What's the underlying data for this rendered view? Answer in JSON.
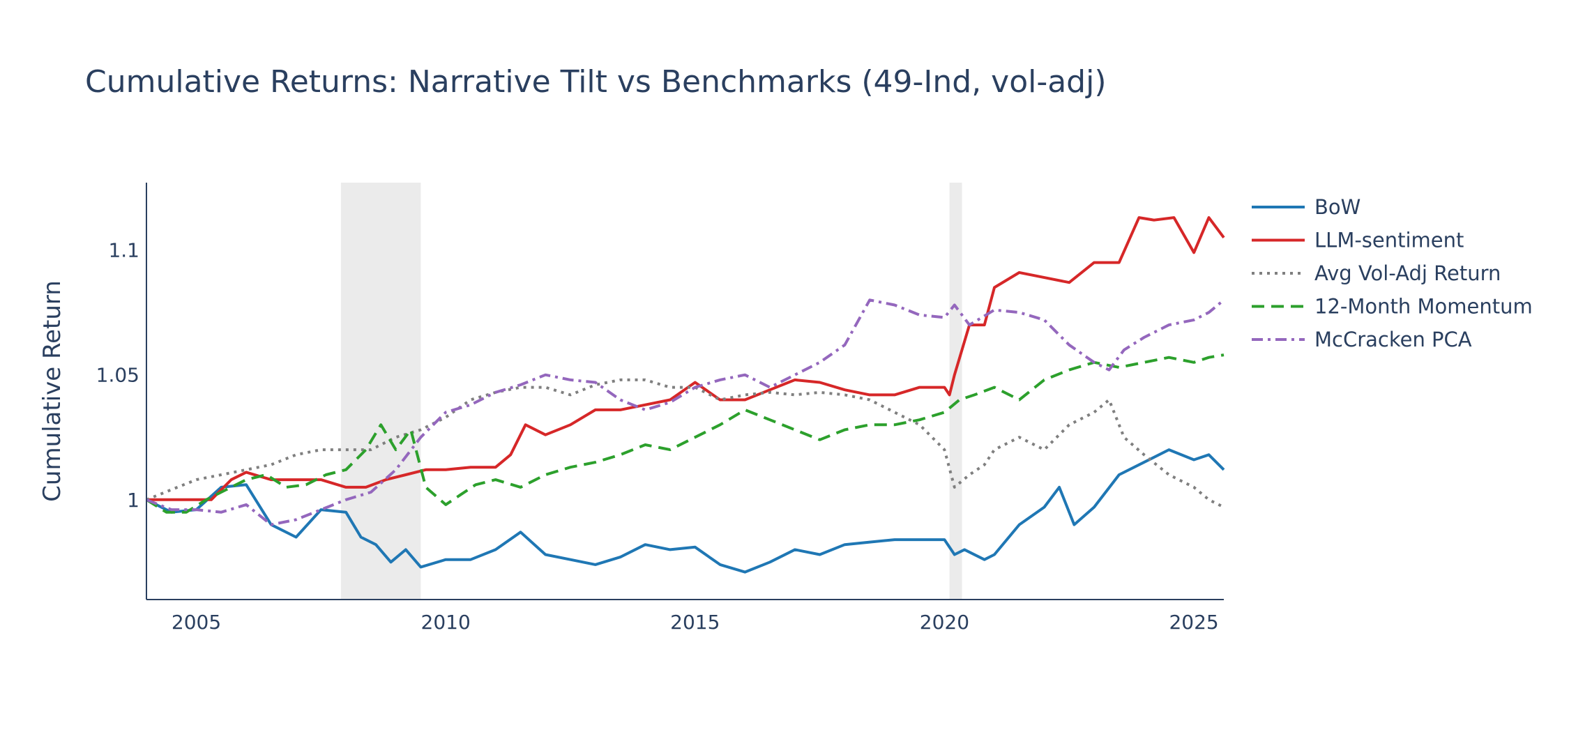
{
  "chart_data": {
    "type": "line",
    "title": "Cumulative Returns: Narrative Tilt vs Benchmarks (49-Ind, vol-adj)",
    "xlabel": "",
    "ylabel": "Cumulative Return",
    "xlim": [
      2004.0,
      2025.6
    ],
    "ylim": [
      0.96,
      1.127
    ],
    "x_ticks": [
      2005,
      2010,
      2015,
      2020,
      2025
    ],
    "x_tick_labels": [
      "2005",
      "2010",
      "2015",
      "2020",
      "2025"
    ],
    "y_ticks": [
      1.0,
      1.05,
      1.1
    ],
    "y_tick_labels": [
      "1",
      "1.05",
      "1.1"
    ],
    "grid": false,
    "legend_position": "right",
    "recession_shading": [
      {
        "start": 2007.9,
        "end": 2009.5,
        "color": "#ebebeb"
      },
      {
        "start": 2020.1,
        "end": 2020.35,
        "color": "#ebebeb"
      }
    ],
    "series": [
      {
        "name": "BoW",
        "color": "#1f77b4",
        "dash": "solid",
        "x": [
          2004.0,
          2004.5,
          2005.0,
          2005.5,
          2006.0,
          2006.5,
          2007.0,
          2007.5,
          2008.0,
          2008.3,
          2008.6,
          2008.9,
          2009.2,
          2009.5,
          2010.0,
          2010.5,
          2011.0,
          2011.5,
          2012.0,
          2012.5,
          2013.0,
          2013.5,
          2014.0,
          2014.5,
          2015.0,
          2015.5,
          2016.0,
          2016.5,
          2017.0,
          2017.5,
          2018.0,
          2018.5,
          2019.0,
          2019.5,
          2020.0,
          2020.2,
          2020.4,
          2020.8,
          2021.0,
          2021.5,
          2022.0,
          2022.3,
          2022.6,
          2023.0,
          2023.5,
          2024.0,
          2024.5,
          2025.0,
          2025.3,
          2025.6
        ],
        "y": [
          1.0,
          0.995,
          0.996,
          1.005,
          1.006,
          0.99,
          0.985,
          0.996,
          0.995,
          0.985,
          0.982,
          0.975,
          0.98,
          0.973,
          0.976,
          0.976,
          0.98,
          0.987,
          0.978,
          0.976,
          0.974,
          0.977,
          0.982,
          0.98,
          0.981,
          0.974,
          0.971,
          0.975,
          0.98,
          0.978,
          0.982,
          0.983,
          0.984,
          0.984,
          0.984,
          0.978,
          0.98,
          0.976,
          0.978,
          0.99,
          0.997,
          1.005,
          0.99,
          0.997,
          1.01,
          1.015,
          1.02,
          1.016,
          1.018,
          1.012
        ]
      },
      {
        "name": "LLM-sentiment",
        "color": "#d62728",
        "dash": "solid",
        "x": [
          2004.0,
          2004.5,
          2005.0,
          2005.3,
          2005.7,
          2006.0,
          2006.5,
          2007.0,
          2007.5,
          2008.0,
          2008.4,
          2008.8,
          2009.2,
          2009.6,
          2010.0,
          2010.5,
          2011.0,
          2011.3,
          2011.6,
          2012.0,
          2012.5,
          2013.0,
          2013.5,
          2014.0,
          2014.5,
          2015.0,
          2015.5,
          2016.0,
          2016.5,
          2017.0,
          2017.5,
          2018.0,
          2018.5,
          2019.0,
          2019.5,
          2020.0,
          2020.1,
          2020.2,
          2020.5,
          2020.8,
          2021.0,
          2021.5,
          2022.0,
          2022.5,
          2023.0,
          2023.5,
          2023.9,
          2024.2,
          2024.6,
          2025.0,
          2025.3,
          2025.6
        ],
        "y": [
          1.0,
          1.0,
          1.0,
          1.0,
          1.008,
          1.011,
          1.008,
          1.008,
          1.008,
          1.005,
          1.005,
          1.008,
          1.01,
          1.012,
          1.012,
          1.013,
          1.013,
          1.018,
          1.03,
          1.026,
          1.03,
          1.036,
          1.036,
          1.038,
          1.04,
          1.047,
          1.04,
          1.04,
          1.044,
          1.048,
          1.047,
          1.044,
          1.042,
          1.042,
          1.045,
          1.045,
          1.042,
          1.05,
          1.07,
          1.07,
          1.085,
          1.091,
          1.089,
          1.087,
          1.095,
          1.095,
          1.113,
          1.112,
          1.113,
          1.099,
          1.113,
          1.105
        ]
      },
      {
        "name": "Avg Vol-Adj Return",
        "color": "#7f7f7f",
        "dash": "dot",
        "x": [
          2004.0,
          2004.5,
          2005.0,
          2005.5,
          2006.0,
          2006.5,
          2007.0,
          2007.5,
          2008.0,
          2008.5,
          2009.0,
          2009.5,
          2010.0,
          2010.5,
          2011.0,
          2011.5,
          2012.0,
          2012.5,
          2013.0,
          2013.5,
          2014.0,
          2014.5,
          2015.0,
          2015.5,
          2016.0,
          2016.5,
          2017.0,
          2017.5,
          2018.0,
          2018.5,
          2019.0,
          2019.5,
          2020.0,
          2020.2,
          2020.5,
          2020.8,
          2021.0,
          2021.5,
          2022.0,
          2022.5,
          2023.0,
          2023.3,
          2023.6,
          2024.0,
          2024.5,
          2025.0,
          2025.3,
          2025.6
        ],
        "y": [
          1.0,
          1.004,
          1.008,
          1.01,
          1.012,
          1.014,
          1.018,
          1.02,
          1.02,
          1.02,
          1.025,
          1.028,
          1.033,
          1.04,
          1.043,
          1.045,
          1.045,
          1.042,
          1.046,
          1.048,
          1.048,
          1.045,
          1.045,
          1.04,
          1.042,
          1.043,
          1.042,
          1.043,
          1.042,
          1.04,
          1.035,
          1.03,
          1.02,
          1.005,
          1.01,
          1.014,
          1.02,
          1.025,
          1.02,
          1.03,
          1.035,
          1.04,
          1.025,
          1.018,
          1.01,
          1.005,
          1.0,
          0.997
        ]
      },
      {
        "name": "12-Month Momentum",
        "color": "#2ca02c",
        "dash": "dash",
        "x": [
          2004.0,
          2004.4,
          2004.8,
          2005.2,
          2005.6,
          2006.0,
          2006.4,
          2006.8,
          2007.2,
          2007.6,
          2008.0,
          2008.4,
          2008.7,
          2009.0,
          2009.3,
          2009.6,
          2010.0,
          2010.3,
          2010.6,
          2011.0,
          2011.5,
          2012.0,
          2012.5,
          2013.0,
          2013.5,
          2014.0,
          2014.5,
          2015.0,
          2015.5,
          2016.0,
          2016.5,
          2017.0,
          2017.5,
          2018.0,
          2018.5,
          2019.0,
          2019.5,
          2020.0,
          2020.3,
          2020.6,
          2021.0,
          2021.5,
          2022.0,
          2022.5,
          2023.0,
          2023.5,
          2024.0,
          2024.5,
          2025.0,
          2025.3,
          2025.6
        ],
        "y": [
          1.0,
          0.995,
          0.995,
          1.0,
          1.004,
          1.008,
          1.01,
          1.005,
          1.006,
          1.01,
          1.012,
          1.02,
          1.03,
          1.02,
          1.028,
          1.005,
          0.998,
          1.002,
          1.006,
          1.008,
          1.005,
          1.01,
          1.013,
          1.015,
          1.018,
          1.022,
          1.02,
          1.025,
          1.03,
          1.036,
          1.032,
          1.028,
          1.024,
          1.028,
          1.03,
          1.03,
          1.032,
          1.035,
          1.04,
          1.042,
          1.045,
          1.04,
          1.048,
          1.052,
          1.055,
          1.053,
          1.055,
          1.057,
          1.055,
          1.057,
          1.058
        ]
      },
      {
        "name": "McCracken PCA",
        "color": "#9467bd",
        "dash": "dashdot",
        "x": [
          2004.0,
          2004.5,
          2005.0,
          2005.5,
          2006.0,
          2006.5,
          2007.0,
          2007.5,
          2008.0,
          2008.5,
          2009.0,
          2009.5,
          2010.0,
          2010.5,
          2011.0,
          2011.5,
          2012.0,
          2012.5,
          2013.0,
          2013.5,
          2014.0,
          2014.5,
          2015.0,
          2015.5,
          2016.0,
          2016.5,
          2017.0,
          2017.5,
          2018.0,
          2018.5,
          2019.0,
          2019.5,
          2020.0,
          2020.2,
          2020.5,
          2021.0,
          2021.5,
          2022.0,
          2022.5,
          2023.0,
          2023.3,
          2023.6,
          2024.0,
          2024.5,
          2025.0,
          2025.3,
          2025.6
        ],
        "y": [
          1.0,
          0.996,
          0.996,
          0.995,
          0.998,
          0.99,
          0.992,
          0.996,
          1.0,
          1.003,
          1.012,
          1.025,
          1.035,
          1.038,
          1.043,
          1.046,
          1.05,
          1.048,
          1.047,
          1.04,
          1.036,
          1.039,
          1.045,
          1.048,
          1.05,
          1.045,
          1.05,
          1.055,
          1.062,
          1.08,
          1.078,
          1.074,
          1.073,
          1.078,
          1.07,
          1.076,
          1.075,
          1.072,
          1.062,
          1.055,
          1.052,
          1.06,
          1.065,
          1.07,
          1.072,
          1.075,
          1.08
        ]
      }
    ]
  }
}
